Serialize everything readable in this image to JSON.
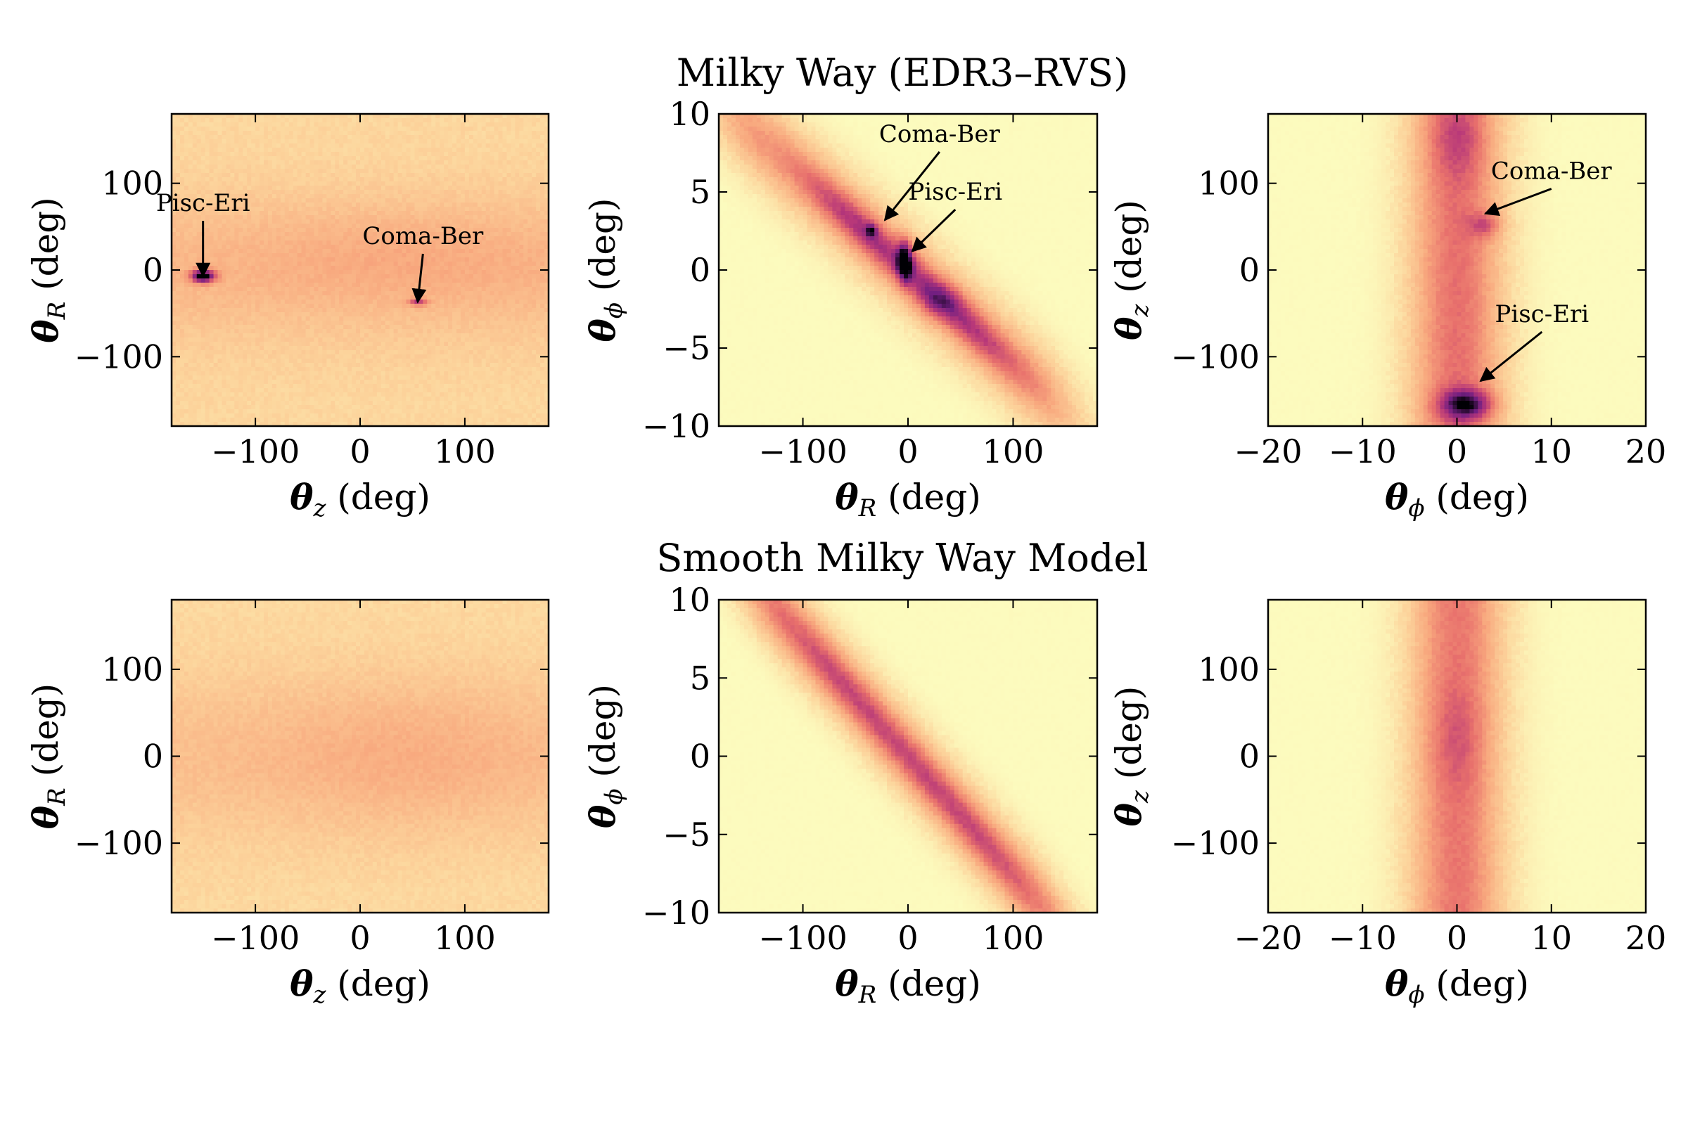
{
  "figure": {
    "rows": [
      {
        "title": "Milky Way (EDR3–RVS)"
      },
      {
        "title": "Smooth Milky Way Model"
      }
    ],
    "colormap": [
      "#fcfbbe",
      "#fcd39b",
      "#f8a87e",
      "#e8706c",
      "#b73779",
      "#721f81",
      "#000004"
    ]
  },
  "chart_data": [
    {
      "type": "heatmap",
      "row": 0,
      "col": 0,
      "x_symbol": "θ",
      "x_sub": "z",
      "x_unit": " (deg)",
      "y_symbol": "θ",
      "y_sub": "R",
      "y_unit": " (deg)",
      "xlim": [
        -180,
        180
      ],
      "ylim": [
        -180,
        180
      ],
      "xticks": [
        -100,
        0,
        100
      ],
      "yticks": [
        -100,
        0,
        100
      ],
      "xtick_labels": [
        "−100",
        "0",
        "100"
      ],
      "ytick_labels": [
        "−100",
        "0",
        "100"
      ],
      "background": 0.15,
      "features": [
        {
          "kind": "band",
          "axis": "y",
          "center": 0,
          "width": 60,
          "amp": 0.12
        },
        {
          "kind": "blob",
          "x": 40,
          "y": 20,
          "sx": 100,
          "sy": 40,
          "amp": 0.06
        },
        {
          "kind": "blob",
          "x": -150,
          "y": -7,
          "sx": 8,
          "sy": 5,
          "amp": 0.85
        },
        {
          "kind": "blob",
          "x": 55,
          "y": -37,
          "sx": 6,
          "sy": 3,
          "amp": 0.4
        }
      ],
      "annotations": [
        {
          "text": "Pisc-Eri",
          "x": -150,
          "y": -7,
          "text_x": -150,
          "text_y": 68
        },
        {
          "text": "Coma-Ber",
          "x": 55,
          "y": -37,
          "text_x": 60,
          "text_y": 30
        }
      ]
    },
    {
      "type": "heatmap",
      "row": 0,
      "col": 1,
      "x_symbol": "θ",
      "x_sub": "R",
      "x_unit": " (deg)",
      "y_symbol": "θ",
      "y_sub": "ϕ",
      "y_unit": " (deg)",
      "xlim": [
        -180,
        180
      ],
      "ylim": [
        -10,
        10
      ],
      "xticks": [
        -100,
        0,
        100
      ],
      "yticks": [
        -10,
        -5,
        0,
        5,
        10
      ],
      "xtick_labels": [
        "−100",
        "0",
        "100"
      ],
      "ytick_labels": [
        "−10",
        "−5",
        "0",
        "5",
        "10"
      ],
      "background": 0.0,
      "features": [
        {
          "kind": "diag",
          "slope": -0.06,
          "intercept": 0,
          "sperp": 2.2,
          "xmin": -140,
          "xmax": 110,
          "amp": 0.35
        },
        {
          "kind": "diag",
          "slope": -0.06,
          "intercept": 0,
          "sperp": 1.0,
          "xmin": -40,
          "xmax": 50,
          "amp": 0.35
        },
        {
          "kind": "blob",
          "x": -3,
          "y": 0.6,
          "sx": 5,
          "sy": 0.9,
          "amp": 0.6
        },
        {
          "kind": "blob",
          "x": -35,
          "y": 2.5,
          "sx": 4,
          "sy": 0.3,
          "amp": 0.35
        },
        {
          "kind": "blob",
          "x": 30,
          "y": -2,
          "sx": 15,
          "sy": 0.8,
          "amp": 0.2
        }
      ],
      "annotations": [
        {
          "text": "Coma-Ber",
          "x": -22,
          "y": 3.2,
          "text_x": 30,
          "text_y": 8.2
        },
        {
          "text": "Pisc-Eri",
          "x": 4,
          "y": 1.2,
          "text_x": 45,
          "text_y": 4.5
        }
      ]
    },
    {
      "type": "heatmap",
      "row": 0,
      "col": 2,
      "x_symbol": "θ",
      "x_sub": "ϕ",
      "x_unit": " (deg)",
      "y_symbol": "θ",
      "y_sub": "z",
      "y_unit": " (deg)",
      "xlim": [
        -20,
        20
      ],
      "ylim": [
        -180,
        180
      ],
      "xticks": [
        -20,
        -10,
        0,
        10,
        20
      ],
      "yticks": [
        -100,
        0,
        100
      ],
      "xtick_labels": [
        "−20",
        "−10",
        "0",
        "10",
        "20"
      ],
      "ytick_labels": [
        "−100",
        "0",
        "100"
      ],
      "background": 0.0,
      "features": [
        {
          "kind": "band",
          "axis": "x",
          "center": 0,
          "width": 3.6,
          "amp": 0.5
        },
        {
          "kind": "blob",
          "x": 1,
          "y": -155,
          "sx": 2,
          "sy": 12,
          "amp": 0.55
        },
        {
          "kind": "blob",
          "x": 3,
          "y": 52,
          "sx": 1.2,
          "sy": 10,
          "amp": 0.25
        },
        {
          "kind": "blob",
          "x": 0,
          "y": 150,
          "sx": 2,
          "sy": 30,
          "amp": 0.15
        }
      ],
      "annotations": [
        {
          "text": "Coma-Ber",
          "x": 3,
          "y": 65,
          "text_x": 10,
          "text_y": 105
        },
        {
          "text": "Pisc-Eri",
          "x": 2.5,
          "y": -128,
          "text_x": 9,
          "text_y": -60
        }
      ]
    },
    {
      "type": "heatmap",
      "row": 1,
      "col": 0,
      "x_symbol": "θ",
      "x_sub": "z",
      "x_unit": " (deg)",
      "y_symbol": "θ",
      "y_sub": "R",
      "y_unit": " (deg)",
      "xlim": [
        -180,
        180
      ],
      "ylim": [
        -180,
        180
      ],
      "xticks": [
        -100,
        0,
        100
      ],
      "yticks": [
        -100,
        0,
        100
      ],
      "xtick_labels": [
        "−100",
        "0",
        "100"
      ],
      "ytick_labels": [
        "−100",
        "0",
        "100"
      ],
      "background": 0.14,
      "features": [
        {
          "kind": "band",
          "axis": "y",
          "center": 0,
          "width": 70,
          "amp": 0.1
        },
        {
          "kind": "blob",
          "x": 40,
          "y": 0,
          "sx": 90,
          "sy": 60,
          "amp": 0.07
        }
      ],
      "annotations": []
    },
    {
      "type": "heatmap",
      "row": 1,
      "col": 1,
      "x_symbol": "θ",
      "x_sub": "R",
      "x_unit": " (deg)",
      "y_symbol": "θ",
      "y_sub": "ϕ",
      "y_unit": " (deg)",
      "xlim": [
        -180,
        180
      ],
      "ylim": [
        -10,
        10
      ],
      "xticks": [
        -100,
        0,
        100
      ],
      "yticks": [
        -10,
        -5,
        0,
        5,
        10
      ],
      "xtick_labels": [
        "−100",
        "0",
        "100"
      ],
      "ytick_labels": [
        "−10",
        "−5",
        "0",
        "5",
        "10"
      ],
      "background": 0.0,
      "features": [
        {
          "kind": "diag",
          "slope": -0.075,
          "intercept": 0,
          "sperp": 2.0,
          "xmin": -120,
          "xmax": 110,
          "amp": 0.42
        },
        {
          "kind": "diag",
          "slope": -0.075,
          "intercept": 0,
          "sperp": 1.0,
          "xmin": -60,
          "xmax": 60,
          "amp": 0.2
        }
      ],
      "annotations": []
    },
    {
      "type": "heatmap",
      "row": 1,
      "col": 2,
      "x_symbol": "θ",
      "x_sub": "ϕ",
      "x_unit": " (deg)",
      "y_symbol": "θ",
      "y_sub": "z",
      "y_unit": " (deg)",
      "xlim": [
        -20,
        20
      ],
      "ylim": [
        -180,
        180
      ],
      "xticks": [
        -20,
        -10,
        0,
        10,
        20
      ],
      "yticks": [
        -100,
        0,
        100
      ],
      "xtick_labels": [
        "−20",
        "−10",
        "0",
        "10",
        "20"
      ],
      "ytick_labels": [
        "−100",
        "0",
        "100"
      ],
      "background": 0.0,
      "features": [
        {
          "kind": "band",
          "axis": "x",
          "center": 0,
          "width": 3.6,
          "amp": 0.48
        },
        {
          "kind": "blob",
          "x": 0,
          "y": 20,
          "sx": 2,
          "sy": 40,
          "amp": 0.1
        }
      ],
      "annotations": []
    }
  ]
}
